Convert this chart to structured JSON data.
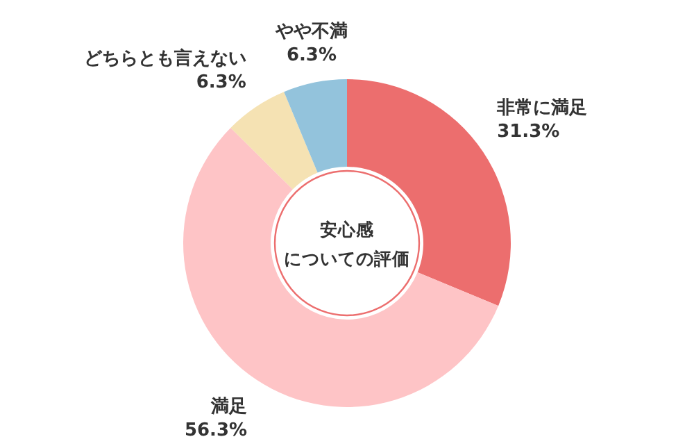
{
  "chart_data": {
    "type": "donut",
    "title": "安心感",
    "subtitle": "についての評価",
    "categories": [
      "非常に満足",
      "満足",
      "どちらとも言えない",
      "やや不満"
    ],
    "values": [
      31.3,
      56.3,
      6.3,
      6.3
    ],
    "value_labels": [
      "31.3%",
      "56.3%",
      "6.3%",
      "6.3%"
    ],
    "colors": [
      "#ec6e6e",
      "#fec4c6",
      "#f5e2b3",
      "#93c3dc"
    ]
  }
}
